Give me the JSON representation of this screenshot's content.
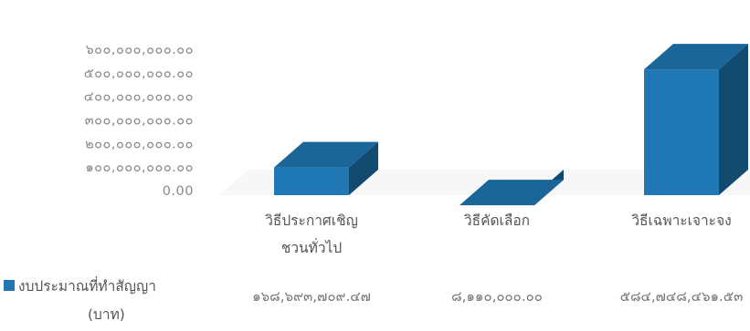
{
  "chart_data": {
    "type": "bar",
    "style": "3d-column",
    "categories": [
      [
        "วิธีประกาศเชิญ",
        "ชวนทั่วไป"
      ],
      [
        "วิธีคัดเลือก"
      ],
      [
        "วิธีเฉพาะเจาะจง"
      ]
    ],
    "yticks": [
      "๖๐๐,๐๐๐,๐๐๐.๐๐",
      "๕๐๐,๐๐๐,๐๐๐.๐๐",
      "๔๐๐,๐๐๐,๐๐๐.๐๐",
      "๓๐๐,๐๐๐,๐๐๐.๐๐",
      "๒๐๐,๐๐๐,๐๐๐.๐๐",
      "๑๐๐,๐๐๐,๐๐๐.๐๐",
      "0.00"
    ],
    "ylim": [
      0,
      600000000
    ],
    "series": [
      {
        "name": [
          "งบประมาณที่ทำสัญญา",
          "(บาท)"
        ],
        "color": "#1f78b4",
        "values": [
          168693709.47,
          8110000.0,
          584748461.53
        ],
        "labels": [
          "๑๖๘,๖๙๓,๗๐๙.๔๗",
          "๘,๑๑๐,๐๐๐.๐๐",
          "๕๘๔,๗๔๘,๔๖๑.๕๓"
        ]
      }
    ],
    "legend": "bottom-left",
    "grid": false
  }
}
